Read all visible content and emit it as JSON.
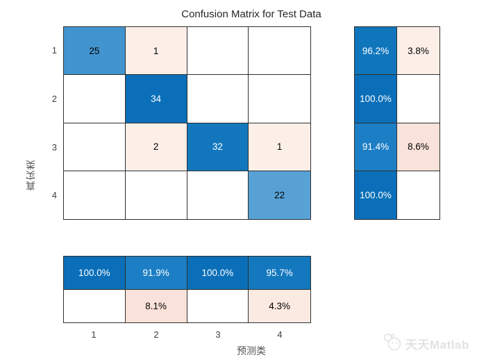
{
  "title": "Confusion Matrix for Test Data",
  "x_axis_label": "预测类",
  "y_axis_label": "真实类",
  "x_ticks": [
    "1",
    "2",
    "3",
    "4"
  ],
  "y_ticks": [
    "1",
    "2",
    "3",
    "4"
  ],
  "watermark": {
    "text": "天天Matlab",
    "logo": "panda-logo-icon"
  },
  "colors": {
    "background": "#ffffff",
    "grid_line": "#2e2e2e",
    "diagonal_dark_blue": "#0a6fb8",
    "diagonal_mid_blue": "#4294ce",
    "diagonal_light_blue": "#58a1d5",
    "offdiag_light_pink": "#fcefe8",
    "offdiag_deep_pink": "#f9e2d9",
    "watermark_gray": "#e2e2e2"
  },
  "chart_data": {
    "type": "heatmap",
    "title": "Confusion Matrix for Test Data",
    "xlabel": "预测类",
    "ylabel": "真实类",
    "classes": [
      "1",
      "2",
      "3",
      "4"
    ],
    "matrix_rows_true_by_predicted": [
      [
        25,
        1,
        0,
        0
      ],
      [
        0,
        34,
        0,
        0
      ],
      [
        0,
        2,
        32,
        1
      ],
      [
        0,
        0,
        0,
        22
      ]
    ],
    "row_summary_percent_correct_incorrect": [
      [
        96.2,
        3.8
      ],
      [
        100.0,
        null
      ],
      [
        91.4,
        8.6
      ],
      [
        100.0,
        null
      ]
    ],
    "column_summary_percent_correct_incorrect": [
      [
        100.0,
        null
      ],
      [
        91.9,
        8.1
      ],
      [
        100.0,
        null
      ],
      [
        95.7,
        4.3
      ]
    ]
  },
  "matrix_cells": [
    {
      "text": "25",
      "bg": "#4294ce",
      "fg": "#000000"
    },
    {
      "text": "1",
      "bg": "#fcefe8",
      "fg": "#000000"
    },
    {
      "text": "",
      "bg": "#ffffff"
    },
    {
      "text": "",
      "bg": "#ffffff"
    },
    {
      "text": "",
      "bg": "#ffffff"
    },
    {
      "text": "34",
      "bg": "#0a6fb8",
      "fg": "#ffffff"
    },
    {
      "text": "",
      "bg": "#ffffff"
    },
    {
      "text": "",
      "bg": "#ffffff"
    },
    {
      "text": "",
      "bg": "#ffffff"
    },
    {
      "text": "2",
      "bg": "#fcefe8",
      "fg": "#000000"
    },
    {
      "text": "32",
      "bg": "#1277bd",
      "fg": "#ffffff"
    },
    {
      "text": "1",
      "bg": "#fcefe8",
      "fg": "#000000"
    },
    {
      "text": "",
      "bg": "#ffffff"
    },
    {
      "text": "",
      "bg": "#ffffff"
    },
    {
      "text": "",
      "bg": "#ffffff"
    },
    {
      "text": "22",
      "bg": "#58a1d5",
      "fg": "#000000"
    }
  ],
  "row_summary_cells": [
    {
      "text": "96.2%",
      "bg": "#1076bc",
      "fg": "#ffffff"
    },
    {
      "text": "3.8%",
      "bg": "#fcefe8",
      "fg": "#000000"
    },
    {
      "text": "100.0%",
      "bg": "#0a6fb8",
      "fg": "#ffffff"
    },
    {
      "text": "",
      "bg": "#ffffff"
    },
    {
      "text": "91.4%",
      "bg": "#1c7ec4",
      "fg": "#ffffff"
    },
    {
      "text": "8.6%",
      "bg": "#f9e2d9",
      "fg": "#000000"
    },
    {
      "text": "100.0%",
      "bg": "#0a6fb8",
      "fg": "#ffffff"
    },
    {
      "text": "",
      "bg": "#ffffff"
    }
  ],
  "col_summary_cells": [
    {
      "text": "100.0%",
      "bg": "#0a6fb8",
      "fg": "#ffffff"
    },
    {
      "text": "91.9%",
      "bg": "#1c7ec4",
      "fg": "#ffffff"
    },
    {
      "text": "100.0%",
      "bg": "#0a6fb8",
      "fg": "#ffffff"
    },
    {
      "text": "95.7%",
      "bg": "#1478be",
      "fg": "#ffffff"
    },
    {
      "text": "",
      "bg": "#ffffff"
    },
    {
      "text": "8.1%",
      "bg": "#f9e2d9",
      "fg": "#000000"
    },
    {
      "text": "",
      "bg": "#ffffff"
    },
    {
      "text": "4.3%",
      "bg": "#fbeae2",
      "fg": "#000000"
    }
  ]
}
